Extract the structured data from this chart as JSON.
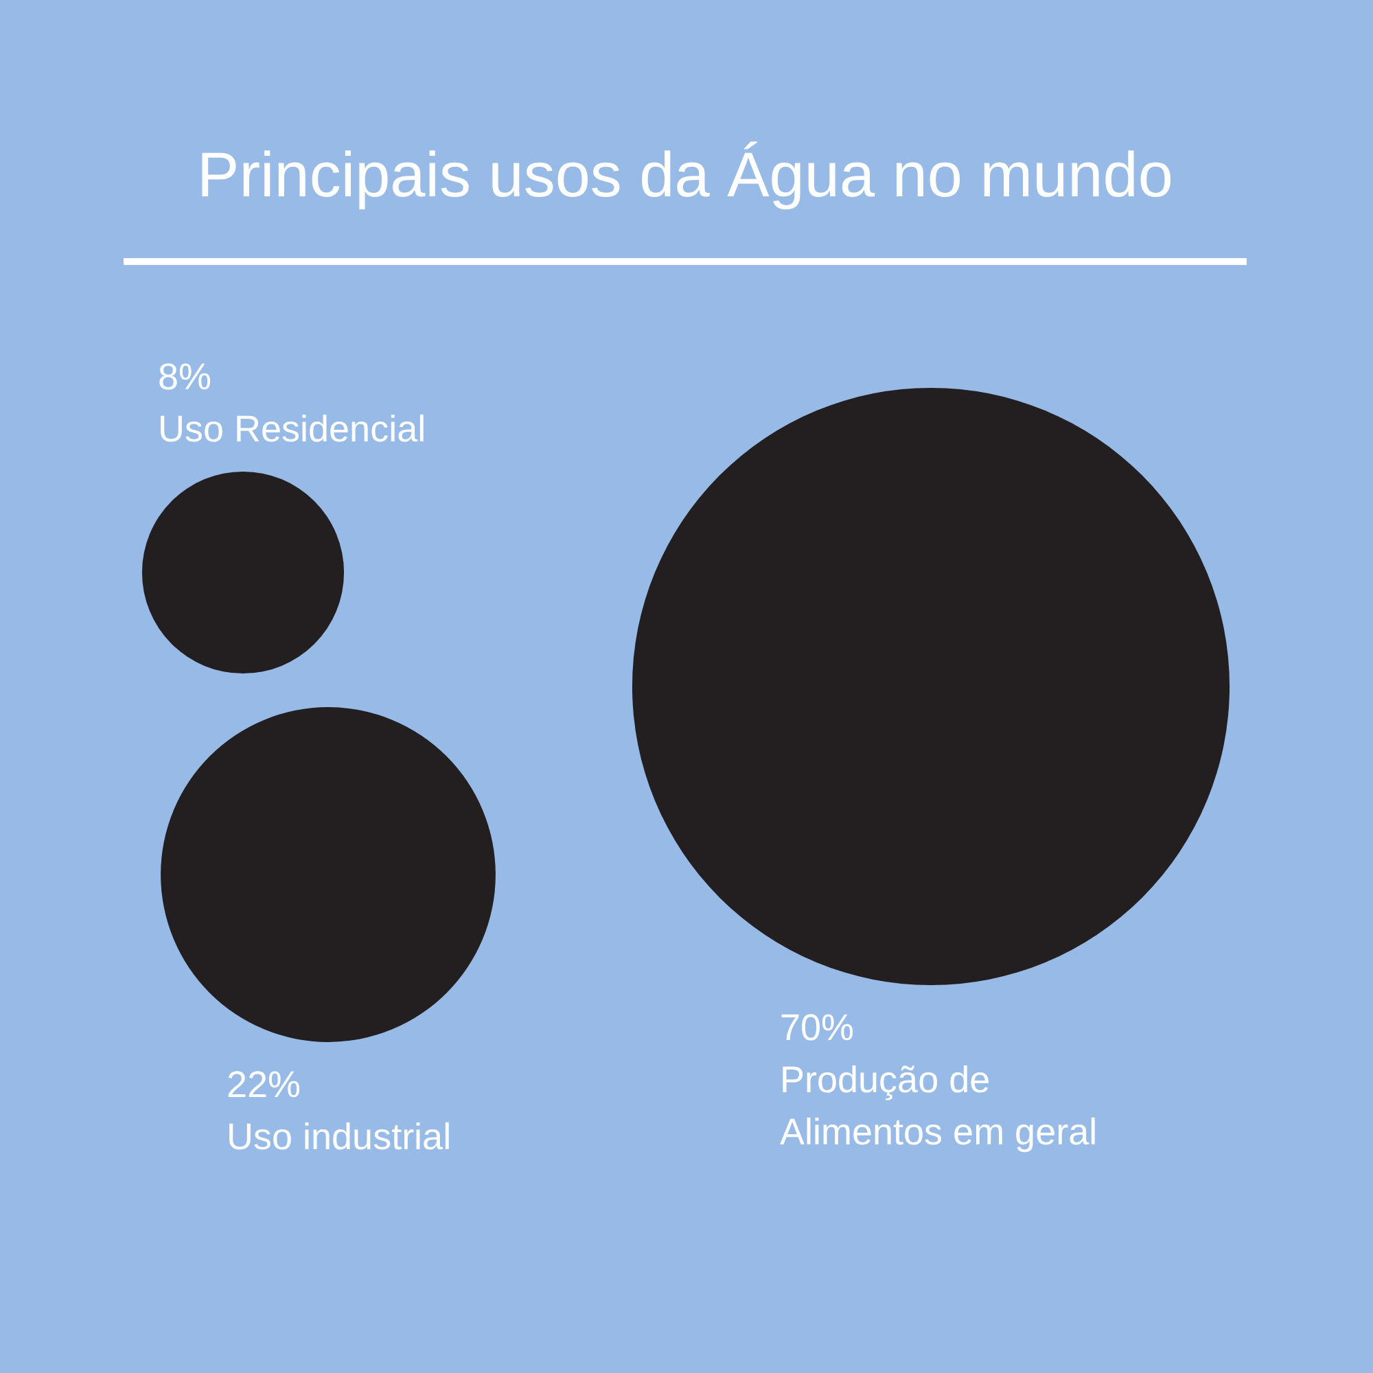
{
  "chart_data": {
    "type": "other",
    "title": "Principais usos da Água no mundo",
    "categories": [
      "Uso Residencial",
      "Uso industrial",
      "Produção de Alimentos em geral"
    ],
    "values": [
      8,
      22,
      70
    ],
    "value_labels": [
      "8%",
      "22%",
      "70%"
    ],
    "color": "#231f20"
  }
}
